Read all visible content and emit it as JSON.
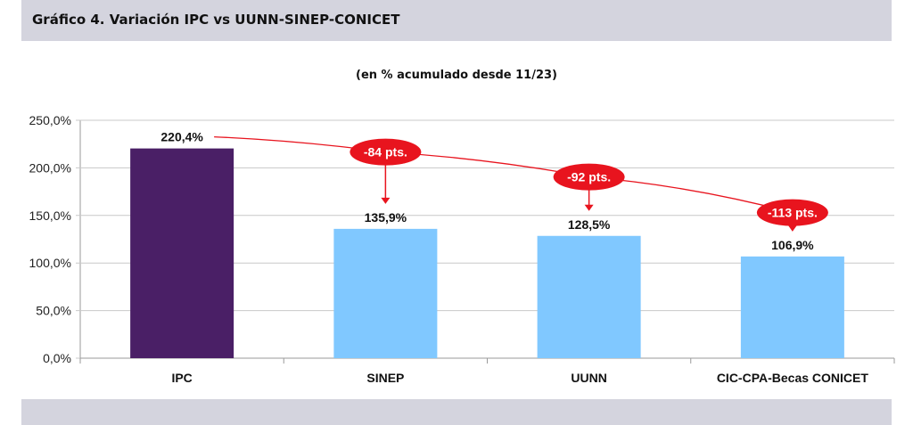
{
  "header": {
    "title": "Gráfico 4. Variación IPC vs UUNN-SINEP-CONICET"
  },
  "chart_data": {
    "type": "bar",
    "subtitle": "(en % acumulado desde 11/23)",
    "categories": [
      "IPC",
      "SINEP",
      "UUNN",
      "CIC-CPA-Becas CONICET"
    ],
    "values": [
      220.4,
      135.9,
      128.5,
      106.9
    ],
    "value_labels": [
      "220,4%",
      "135,9%",
      "128,5%",
      "106,9%"
    ],
    "bar_colors": [
      "#4a1f66",
      "#80c8ff",
      "#80c8ff",
      "#80c8ff"
    ],
    "ylim": [
      0,
      250
    ],
    "yticks": [
      0,
      50,
      100,
      150,
      200,
      250
    ],
    "ytick_labels": [
      "0,0%",
      "50,0%",
      "100,0%",
      "150,0%",
      "200,0%",
      "250,0%"
    ],
    "grid": true,
    "annotations": [
      {
        "text": "-84 pts.",
        "category": "SINEP",
        "difference": -84
      },
      {
        "text": "-92 pts.",
        "category": "UUNN",
        "difference": -92
      },
      {
        "text": "-113 pts.",
        "category": "CIC-CPA-Becas CONICET",
        "difference": -113
      }
    ],
    "annotation_color": "#e8141e"
  }
}
